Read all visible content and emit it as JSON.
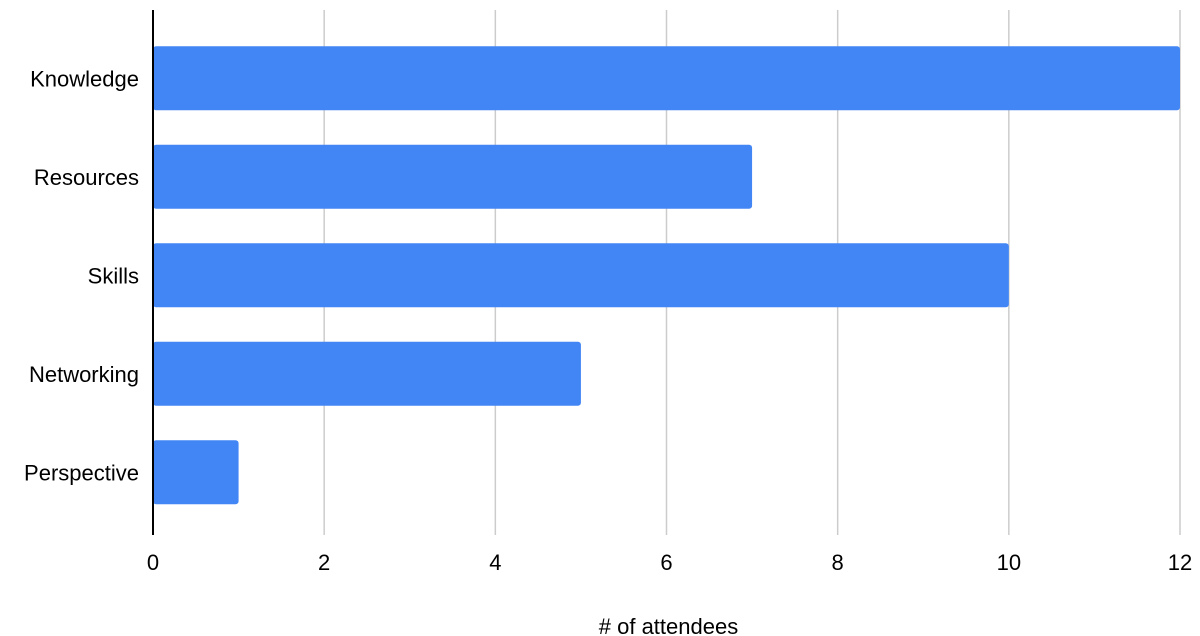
{
  "chart_data": {
    "type": "bar",
    "orientation": "horizontal",
    "categories": [
      "Knowledge",
      "Resources",
      "Skills",
      "Networking",
      "Perspective"
    ],
    "values": [
      12,
      7,
      10,
      5,
      1
    ],
    "xlabel": "# of attendees",
    "ylabel": "",
    "xlim": [
      0,
      12
    ],
    "xticks": [
      "0",
      "2",
      "4",
      "6",
      "8",
      "10",
      "12"
    ],
    "grid": "vertical",
    "legend": "none",
    "bar_color": "#4285f4",
    "grid_color": "#cccccc",
    "axis_color": "#000000"
  }
}
